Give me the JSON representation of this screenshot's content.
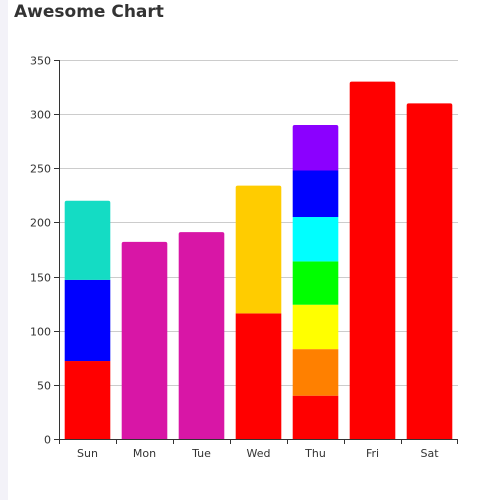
{
  "chart_data": {
    "type": "bar",
    "title": "Awesome Chart",
    "xlabel": "",
    "ylabel": "",
    "ylim": [
      0,
      350
    ],
    "yticks": [
      0,
      50,
      100,
      150,
      200,
      250,
      300,
      350
    ],
    "grid": true,
    "legend": "none",
    "categories": [
      "Sun",
      "Mon",
      "Tue",
      "Wed",
      "Thu",
      "Fri",
      "Sat"
    ],
    "bars": [
      {
        "category": "Sun",
        "segments": [
          {
            "value": 72,
            "color": "#ff0000"
          },
          {
            "value": 75,
            "color": "#0000ff"
          },
          {
            "value": 73,
            "color": "#14dcc4"
          }
        ]
      },
      {
        "category": "Mon",
        "segments": [
          {
            "value": 182,
            "color": "#d816a6"
          }
        ]
      },
      {
        "category": "Tue",
        "segments": [
          {
            "value": 191,
            "color": "#d816a6"
          }
        ]
      },
      {
        "category": "Wed",
        "segments": [
          {
            "value": 116,
            "color": "#ff0000"
          },
          {
            "value": 118,
            "color": "#ffcc00"
          }
        ]
      },
      {
        "category": "Thu",
        "segments": [
          {
            "value": 40,
            "color": "#ff0000"
          },
          {
            "value": 43,
            "color": "#ff8000"
          },
          {
            "value": 41,
            "color": "#ffff00"
          },
          {
            "value": 40,
            "color": "#00ff00"
          },
          {
            "value": 41,
            "color": "#00ffff"
          },
          {
            "value": 43,
            "color": "#0000ff"
          },
          {
            "value": 42,
            "color": "#8b00ff"
          }
        ]
      },
      {
        "category": "Fri",
        "segments": [
          {
            "value": 330,
            "color": "#ff0000"
          }
        ]
      },
      {
        "category": "Sat",
        "segments": [
          {
            "value": 310,
            "color": "#ff0000"
          }
        ]
      }
    ]
  }
}
